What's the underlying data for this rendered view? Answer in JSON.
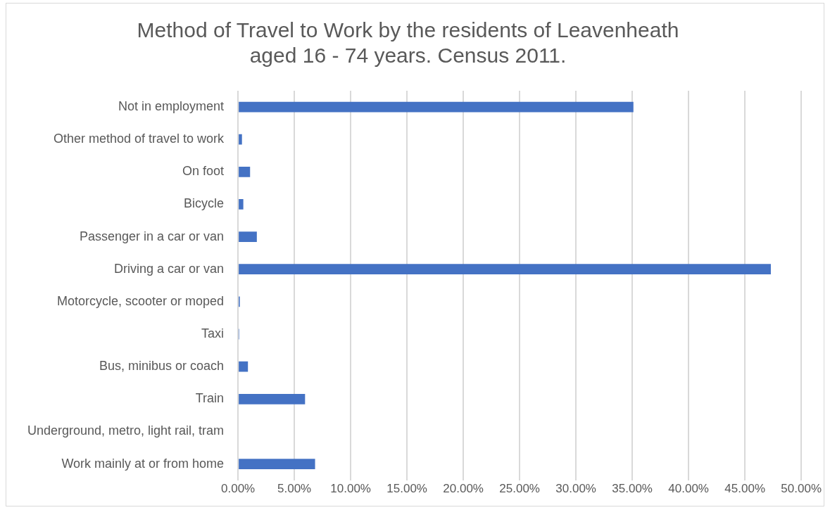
{
  "chart_data": {
    "type": "bar",
    "orientation": "horizontal",
    "title": [
      "Method of Travel to Work by the residents of Leavenheath",
      "aged 16 - 74 years. Census 2011."
    ],
    "categories": [
      "Not in employment",
      "Other method of travel to work",
      "On foot",
      "Bicycle",
      "Passenger in a car or van",
      "Driving a car or van",
      "Motorcycle, scooter or moped",
      "Taxi",
      "Bus, minibus or coach",
      "Train",
      "Underground, metro, light rail, tram",
      "Work mainly at or from home"
    ],
    "values": [
      35.1,
      0.35,
      1.07,
      0.47,
      1.67,
      47.3,
      0.16,
      0.1,
      0.88,
      5.95,
      0,
      6.84
    ],
    "color": "#4472c4",
    "xlim": [
      0,
      50
    ],
    "xticks": [
      {
        "value": 0,
        "label": "0.00%"
      },
      {
        "value": 5,
        "label": "5.00%"
      },
      {
        "value": 10,
        "label": "10.00%"
      },
      {
        "value": 15,
        "label": "15.00%"
      },
      {
        "value": 20,
        "label": "20.00%"
      },
      {
        "value": 25,
        "label": "25.00%"
      },
      {
        "value": 30,
        "label": "30.00%"
      },
      {
        "value": 35,
        "label": "35.00%"
      },
      {
        "value": 40,
        "label": "40.00%"
      },
      {
        "value": 45,
        "label": "45.00%"
      },
      {
        "value": 50,
        "label": "50.00%"
      }
    ],
    "grid": "x"
  }
}
